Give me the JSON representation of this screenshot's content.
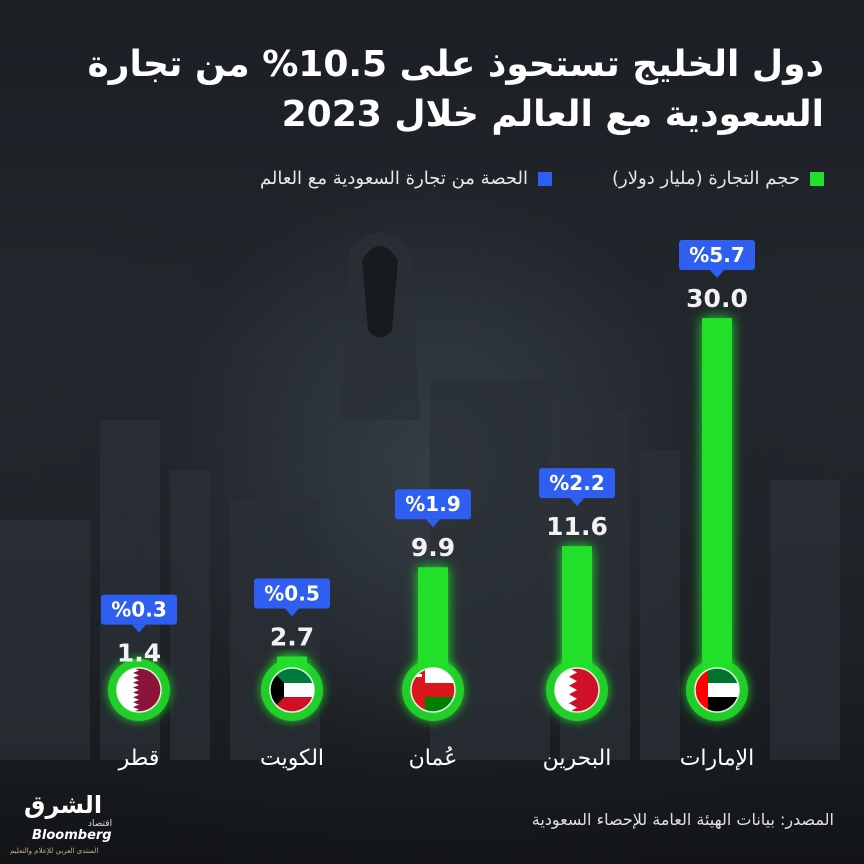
{
  "title": "دول الخليج تستحوذ على 10.5% من تجارة السعودية مع العالم خلال 2023",
  "legend": {
    "volume_label": "حجم التجارة (مليار دولار)",
    "share_label": "الحصة من تجارة السعودية مع العالم"
  },
  "colors": {
    "volume": "#22e02b",
    "share": "#2f5ff0"
  },
  "chart_data": {
    "type": "bar",
    "categories": [
      "الإمارات",
      "البحرين",
      "عُمان",
      "الكويت",
      "قطر"
    ],
    "series": [
      {
        "name": "حجم التجارة (مليار دولار)",
        "values": [
          30.0,
          11.6,
          9.9,
          2.7,
          1.4
        ],
        "labels": [
          "30.0",
          "11.6",
          "9.9",
          "2.7",
          "1.4"
        ]
      },
      {
        "name": "الحصة من تجارة السعودية مع العالم",
        "values": [
          5.7,
          2.2,
          1.9,
          0.5,
          0.3
        ],
        "labels": [
          "%5.7",
          "%2.2",
          "%1.9",
          "%0.5",
          "%0.3"
        ]
      }
    ],
    "flags": [
      "uae-flag-icon",
      "bahrain-flag-icon",
      "oman-flag-icon",
      "kuwait-flag-icon",
      "qatar-flag-icon"
    ],
    "ylim": [
      0,
      30
    ]
  },
  "source": "المصدر: بيانات الهيئة العامة للإحصاء السعودية",
  "logo": {
    "main": "الشرق",
    "sub": "اقتصاد",
    "brand": "Bloomberg",
    "tagline": "المنتدى العربي للإعلام والتعليم"
  }
}
